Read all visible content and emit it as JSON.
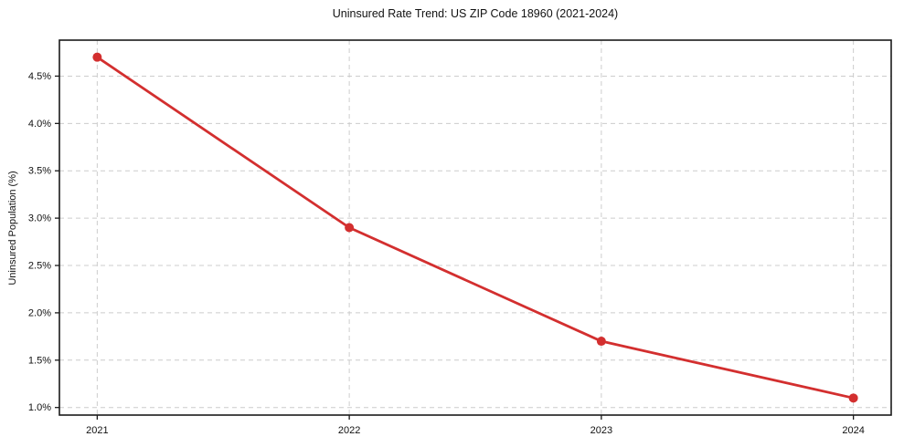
{
  "chart_data": {
    "type": "line",
    "title": "Uninsured Rate Trend: US ZIP Code 18960 (2021-2024)",
    "xlabel": "",
    "ylabel": "Uninsured Population (%)",
    "x": [
      2021,
      2022,
      2023,
      2024
    ],
    "x_tick_labels": [
      "2021",
      "2022",
      "2023",
      "2024"
    ],
    "series": [
      {
        "name": "Uninsured Population (%)",
        "values": [
          4.7,
          2.9,
          1.7,
          1.1
        ]
      }
    ],
    "y_ticks": [
      1.0,
      1.5,
      2.0,
      2.5,
      3.0,
      3.5,
      4.0,
      4.5
    ],
    "y_tick_labels": [
      "1.0%",
      "1.5%",
      "2.0%",
      "2.5%",
      "3.0%",
      "3.5%",
      "4.0%",
      "4.5%"
    ],
    "xlim": [
      2020.85,
      2024.15
    ],
    "ylim": [
      0.92,
      4.88
    ],
    "grid": true,
    "legend": false,
    "colors": {
      "line": "#d32f2f",
      "marker": "#d32f2f",
      "grid": "#cccccc",
      "spine": "#1a1a1a",
      "tick_text": "#111111",
      "background": "#ffffff"
    }
  }
}
